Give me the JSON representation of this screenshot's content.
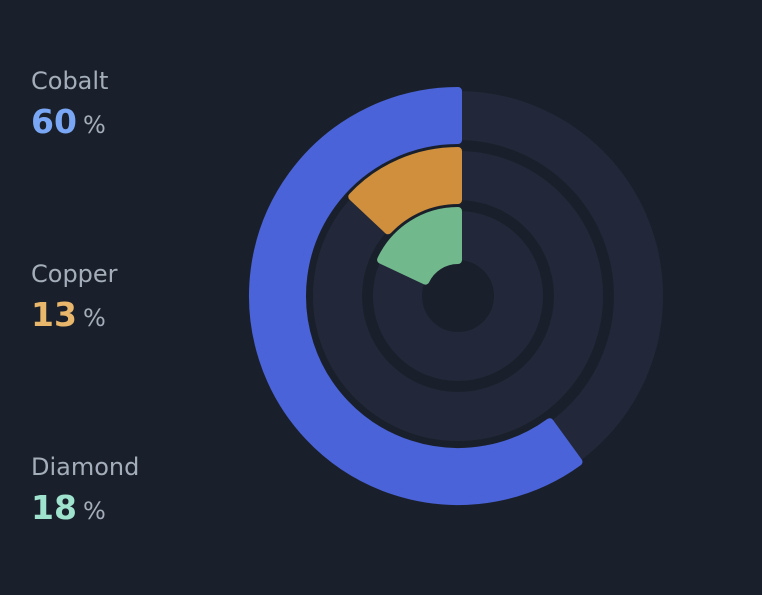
{
  "chart_data": {
    "type": "radial-bar",
    "unit": "%",
    "max": 100,
    "series": [
      {
        "name": "Cobalt",
        "value": 60,
        "color": "#4a63d8",
        "label_color": "#7aa7f5"
      },
      {
        "name": "Copper",
        "value": 13,
        "color": "#d08f3c",
        "label_color": "#e9b76c"
      },
      {
        "name": "Diamond",
        "value": 18,
        "color": "#71b98d",
        "label_color": "#9fe3cf"
      }
    ],
    "track_color": "#222839",
    "gap_color": "#1a202b"
  }
}
